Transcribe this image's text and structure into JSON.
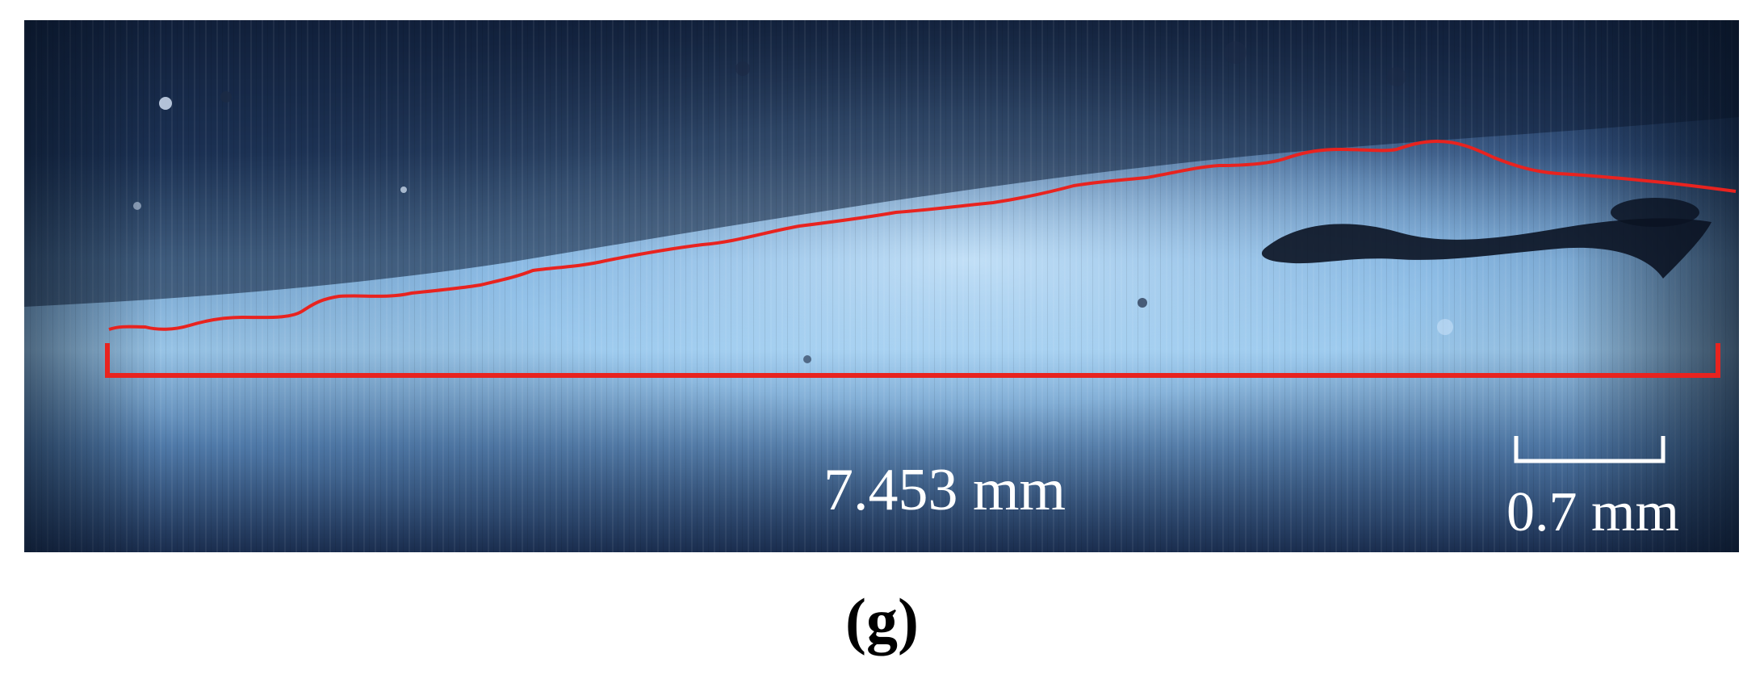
{
  "figure": {
    "panel_label": "(g)",
    "measurement_label": "7.453 mm",
    "scale_bar_label": "0.7 mm",
    "colors": {
      "trace": "#e8231f",
      "label_text": "#ffffff",
      "background_light": "#a9d4f2",
      "background_dark": "#0f1c33"
    }
  }
}
